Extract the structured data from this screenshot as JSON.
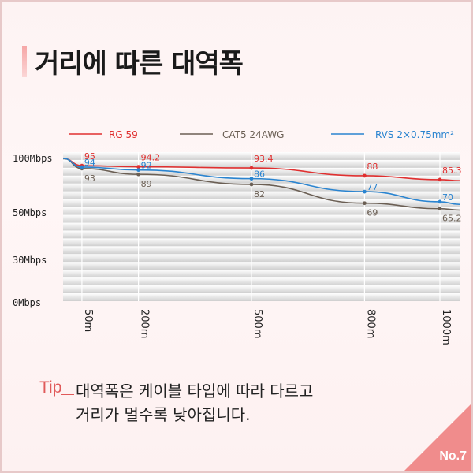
{
  "title": "거리에 따른 대역폭",
  "tip": {
    "label": "Tip",
    "line1": "대역폭은 케이블 타입에 따라 다르고",
    "line2": "거리가 멀수록 낮아집니다."
  },
  "badge": "No.7",
  "colors": {
    "accent": "#f08c8c",
    "tip": "#e05a5a"
  },
  "chart_data": {
    "type": "line",
    "x": [
      "50m",
      "200m",
      "500m",
      "800m",
      "1000m"
    ],
    "x_positions_m": [
      50,
      200,
      500,
      800,
      1000
    ],
    "x_start_m": 0,
    "y_start": 100,
    "yticks": [
      "100Mbps",
      "50Mbps",
      "30Mbps",
      "0Mbps"
    ],
    "grid": true,
    "legend_position": "top",
    "series": [
      {
        "name": "RG 59",
        "color": "#e03030",
        "values": [
          95,
          94.2,
          93.4,
          88,
          85.3
        ],
        "labels": [
          "95",
          "94.2",
          "93.4",
          "88",
          "85.3"
        ]
      },
      {
        "name": "CAT5 24AWG",
        "color": "#6b5f54",
        "values": [
          93,
          89,
          82,
          69,
          65.2
        ],
        "labels": [
          "93",
          "89",
          "82",
          "69",
          "65.2"
        ]
      },
      {
        "name": "RVS 2×0.75mm²",
        "color": "#2a84d0",
        "values": [
          94,
          92,
          86,
          77,
          70
        ],
        "labels": [
          "94",
          "92",
          "86",
          "77",
          "70"
        ]
      }
    ]
  }
}
